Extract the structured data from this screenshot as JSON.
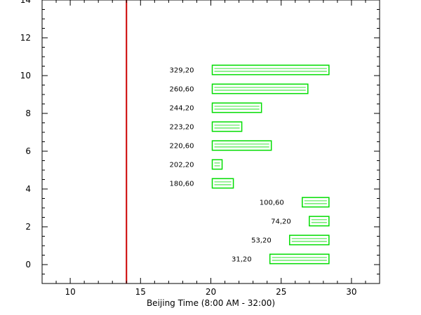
{
  "chart_data": {
    "type": "bar",
    "orientation": "horizontal-range",
    "title": "",
    "xlabel": "Beijing Time (8:00 AM - 32:00)",
    "ylabel": "",
    "xlim": [
      8,
      32
    ],
    "ylim": [
      -1,
      14
    ],
    "xticks": [
      10,
      15,
      20,
      25,
      30
    ],
    "yticks": [
      0,
      2,
      4,
      6,
      8,
      10,
      12,
      14
    ],
    "grid": false,
    "reference_line": {
      "x": 14,
      "color": "#cc0000"
    },
    "bar_color": "#00dd00",
    "bars": [
      {
        "label": "329,20",
        "y": 10.3,
        "start": 20.1,
        "end": 28.4
      },
      {
        "label": "260,60",
        "y": 9.3,
        "start": 20.1,
        "end": 26.9
      },
      {
        "label": "244,20",
        "y": 8.3,
        "start": 20.1,
        "end": 23.6
      },
      {
        "label": "223,20",
        "y": 7.3,
        "start": 20.1,
        "end": 22.2
      },
      {
        "label": "220,60",
        "y": 6.3,
        "start": 20.1,
        "end": 24.3
      },
      {
        "label": "202,20",
        "y": 5.3,
        "start": 20.1,
        "end": 20.8
      },
      {
        "label": "180,60",
        "y": 4.3,
        "start": 20.1,
        "end": 21.6
      },
      {
        "label": "100,60",
        "y": 3.3,
        "start": 26.5,
        "end": 28.4
      },
      {
        "label": "74,20",
        "y": 2.3,
        "start": 27.0,
        "end": 28.4
      },
      {
        "label": "53,20",
        "y": 1.3,
        "start": 25.6,
        "end": 28.4
      },
      {
        "label": "31,20",
        "y": 0.3,
        "start": 24.2,
        "end": 28.4
      }
    ]
  }
}
